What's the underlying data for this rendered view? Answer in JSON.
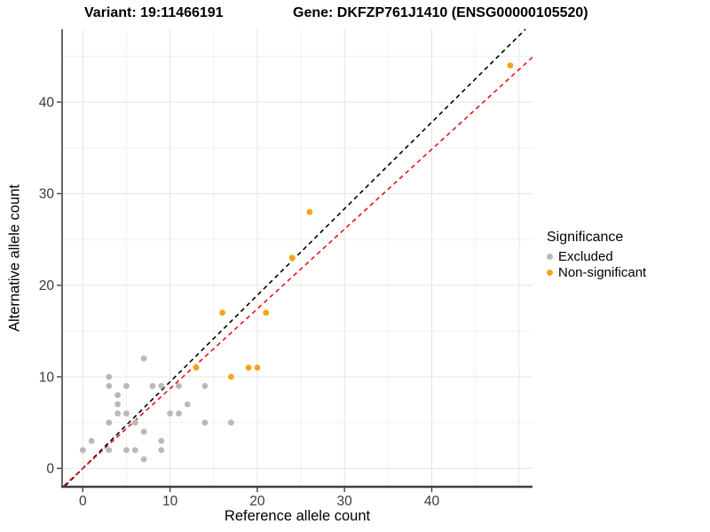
{
  "header": {
    "variant_title": "Variant: 19:11466191",
    "gene_title": "Gene: DKFZP761J1410 (ENSG00000105520)"
  },
  "legend": {
    "title": "Significance",
    "items": [
      {
        "label": "Excluded",
        "color": "#b9b9b9"
      },
      {
        "label": "Non-significant",
        "color": "#faa21b"
      }
    ]
  },
  "chart_data": {
    "type": "scatter",
    "title_left": "Variant: 19:11466191",
    "title_right": "Gene: DKFZP761J1410 (ENSG00000105520)",
    "xlabel": "Reference allele count",
    "ylabel": "Alternative allele count",
    "xlim": [
      -2.37,
      51.55
    ],
    "ylim": [
      -1.91,
      47.95
    ],
    "x_ticks": [
      0,
      10,
      20,
      30,
      40
    ],
    "y_ticks": [
      0,
      10,
      20,
      30,
      40
    ],
    "grid_major": [
      0,
      10,
      20,
      30,
      40,
      50
    ],
    "grid_minor": [
      5,
      15,
      25,
      35,
      45
    ],
    "grid_on": true,
    "legend_position": "right",
    "series": [
      {
        "name": "Excluded",
        "color": "#b9b9b9",
        "points": [
          [
            0,
            2
          ],
          [
            1,
            3
          ],
          [
            3,
            2
          ],
          [
            3,
            5
          ],
          [
            3,
            9
          ],
          [
            3,
            10
          ],
          [
            4,
            6
          ],
          [
            4,
            7
          ],
          [
            4,
            8
          ],
          [
            5,
            2
          ],
          [
            5,
            6
          ],
          [
            5,
            9
          ],
          [
            6,
            2
          ],
          [
            6,
            5
          ],
          [
            7,
            1
          ],
          [
            7,
            4
          ],
          [
            7,
            12
          ],
          [
            8,
            9
          ],
          [
            9,
            2
          ],
          [
            9,
            3
          ],
          [
            9,
            9
          ],
          [
            10,
            6
          ],
          [
            11,
            6
          ],
          [
            11,
            9
          ],
          [
            12,
            7
          ],
          [
            14,
            5
          ],
          [
            14,
            9
          ],
          [
            17,
            5
          ]
        ]
      },
      {
        "name": "Non-significant",
        "color": "#faa21b",
        "points": [
          [
            13,
            11
          ],
          [
            16,
            17
          ],
          [
            17,
            10
          ],
          [
            19,
            11
          ],
          [
            20,
            11
          ],
          [
            21,
            17
          ],
          [
            24,
            23
          ],
          [
            26,
            28
          ],
          [
            49,
            44
          ]
        ]
      }
    ],
    "ref_lines": [
      {
        "name": "identity-line",
        "color": "#000000",
        "slope": 0.945,
        "intercept": 0,
        "dash": "5,4"
      },
      {
        "name": "fit-line",
        "color": "#ee1111",
        "slope": 0.871,
        "intercept": 0,
        "dash": "5,4"
      }
    ]
  }
}
